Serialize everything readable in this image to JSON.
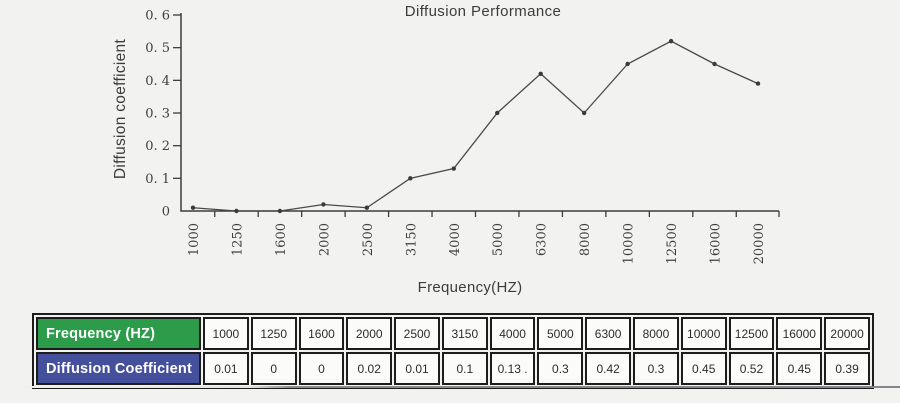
{
  "page": {
    "background": "#f2f2f0"
  },
  "chart_data": {
    "type": "line",
    "title": "Diffusion Performance",
    "xlabel": "Frequency(HZ)",
    "ylabel": "Diffusion coefficient",
    "categories": [
      1000,
      1250,
      1600,
      2000,
      2500,
      3150,
      4000,
      5000,
      6300,
      8000,
      10000,
      12500,
      16000,
      20000
    ],
    "values": [
      0.01,
      0,
      0,
      0.02,
      0.01,
      0.1,
      0.13,
      0.3,
      0.42,
      0.3,
      0.45,
      0.52,
      0.45,
      0.39
    ],
    "ylim": [
      0,
      0.6
    ],
    "y_tick_labels": [
      "0",
      "0. 1",
      "0. 2",
      "0. 3",
      "0. 4",
      "0. 5",
      "0. 6"
    ],
    "grid": false,
    "legend": "none",
    "line_color": "#4a4a4a",
    "marker_color": "#3a3a3a",
    "axis_color": "#3c3c3c"
  },
  "table": {
    "row_headers": [
      "Frequency (HZ)",
      "Diffusion Coefficient"
    ],
    "header_colors": {
      "frequency": "#2d9c4a",
      "coefficient": "#45509d"
    },
    "frequencies": [
      "1000",
      "1250",
      "1600",
      "2000",
      "2500",
      "3150",
      "4000",
      "5000",
      "6300",
      "8000",
      "10000",
      "12500",
      "16000",
      "20000"
    ],
    "coefficients": [
      "0.01",
      "0",
      "0",
      "0.02",
      "0.01",
      "0.1",
      "0.13 .",
      "0.3",
      "0.42",
      "0.3",
      "0.45",
      "0.52",
      "0.45",
      "0.39"
    ]
  }
}
